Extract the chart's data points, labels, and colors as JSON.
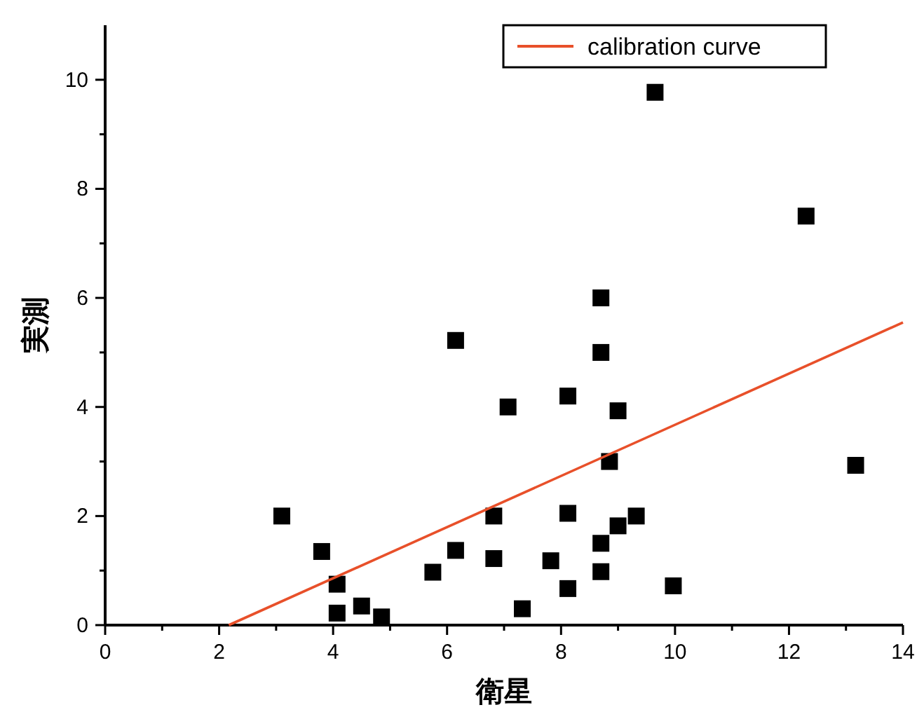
{
  "chart_data": {
    "type": "scatter",
    "xlabel": "衛星",
    "ylabel": "実測",
    "xlim": [
      0,
      14
    ],
    "ylim": [
      0,
      11
    ],
    "xticks": [
      0,
      {
        "value": 1,
        "label": null
      },
      2,
      {
        "value": 3,
        "label": null
      },
      4,
      {
        "value": 5,
        "label": null
      },
      6,
      {
        "value": 7,
        "label": null
      },
      8,
      {
        "value": 9,
        "label": null
      },
      10,
      {
        "value": 11,
        "label": null
      },
      12,
      {
        "value": 13,
        "label": null
      },
      14
    ],
    "yticks": [
      0,
      {
        "value": 1,
        "label": null
      },
      2,
      {
        "value": 3,
        "label": null
      },
      4,
      {
        "value": 5,
        "label": null
      },
      6,
      {
        "value": 7,
        "label": null
      },
      8,
      {
        "value": 9,
        "label": null
      },
      10
    ],
    "grid": false,
    "legend": "top right",
    "series": [
      {
        "marker": "square",
        "color": "#000000",
        "x": [
          3.1,
          3.8,
          4.07,
          4.07,
          4.5,
          4.85,
          5.75,
          6.15,
          6.15,
          6.82,
          6.82,
          7.07,
          7.32,
          7.82,
          8.12,
          8.12,
          8.12,
          8.7,
          8.7,
          8.7,
          8.7,
          8.85,
          9.0,
          9.0,
          9.32,
          9.97,
          9.65,
          12.3,
          13.17
        ],
        "values": [
          2.0,
          1.35,
          0.75,
          0.22,
          0.35,
          0.15,
          0.97,
          1.37,
          5.22,
          2.0,
          1.22,
          4.0,
          0.3,
          1.18,
          4.2,
          2.05,
          0.67,
          6.0,
          5.0,
          1.5,
          0.98,
          3.0,
          3.93,
          1.82,
          2.0,
          0.72,
          9.77,
          7.5,
          2.93
        ]
      },
      {
        "type": "line",
        "name": "calibration curve",
        "color": "#e8502a",
        "marker": "none",
        "line_style": "solid",
        "x": [
          2.17,
          14
        ],
        "values": [
          0,
          5.55
        ]
      }
    ]
  }
}
